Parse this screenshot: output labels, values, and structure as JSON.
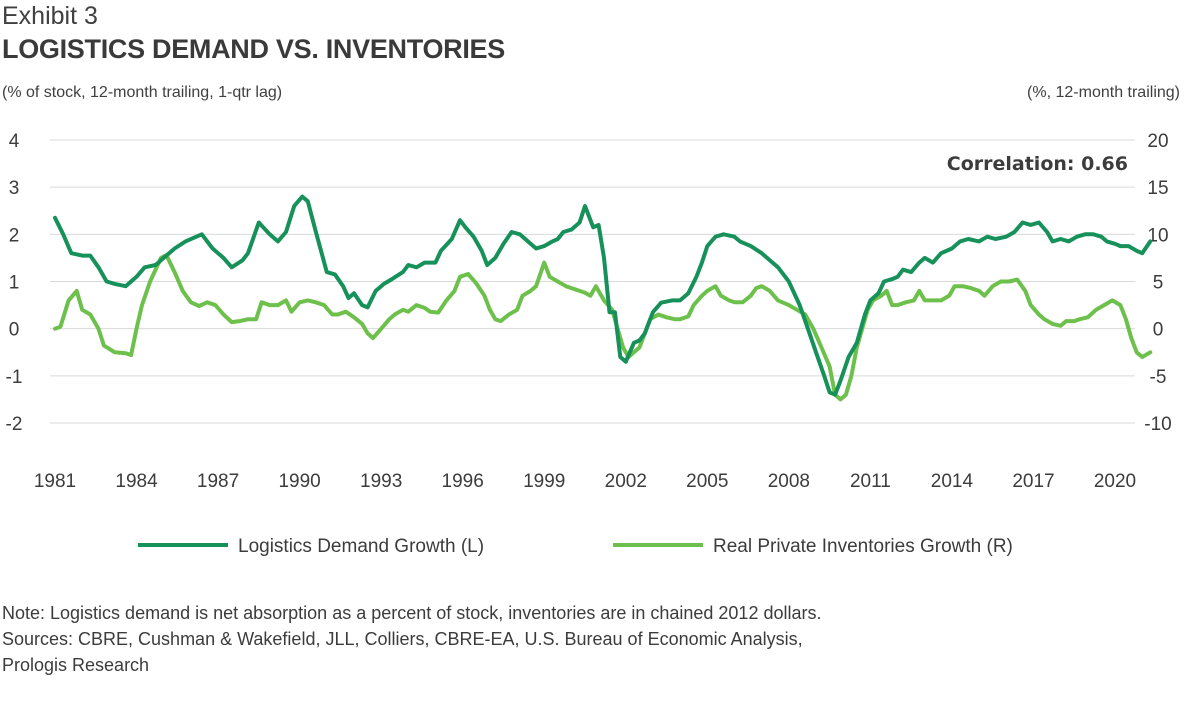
{
  "header": {
    "exhibit": "Exhibit 3",
    "title": "LOGISTICS DEMAND VS. INVENTORIES",
    "left_unit": "(% of stock, 12-month trailing, 1-qtr lag)",
    "right_unit": "(%, 12-month trailing)"
  },
  "chart_data": {
    "type": "line",
    "annotation": "Correlation: 0.66",
    "x_ticks": [
      "1981",
      "1984",
      "1987",
      "1990",
      "1993",
      "1996",
      "1999",
      "2002",
      "2005",
      "2008",
      "2011",
      "2014",
      "2017",
      "2020"
    ],
    "y_left": {
      "label": "(% of stock, 12-month trailing, 1-qtr lag)",
      "ticks": [
        "4",
        "3",
        "2",
        "1",
        "0",
        "-1",
        "-2"
      ],
      "ylim": [
        -2,
        4
      ]
    },
    "y_right": {
      "label": "(%, 12-month trailing)",
      "ticks": [
        "20",
        "15",
        "10",
        "5",
        "0",
        "-5",
        "-10"
      ],
      "ylim": [
        -10,
        20
      ]
    },
    "colors": {
      "demand": "#17915A",
      "inventories": "#6DC04B",
      "grid": "#d9d9d9"
    },
    "series": [
      {
        "name": "Logistics Demand Growth (L)",
        "axis": "left",
        "points": [
          [
            1981.0,
            2.35
          ],
          [
            1981.3,
            2.0
          ],
          [
            1981.6,
            1.6
          ],
          [
            1982.0,
            1.55
          ],
          [
            1982.3,
            1.55
          ],
          [
            1982.6,
            1.3
          ],
          [
            1982.9,
            1.0
          ],
          [
            1983.2,
            0.95
          ],
          [
            1983.6,
            0.9
          ],
          [
            1984.0,
            1.1
          ],
          [
            1984.3,
            1.3
          ],
          [
            1984.7,
            1.35
          ],
          [
            1985.0,
            1.5
          ],
          [
            1985.4,
            1.7
          ],
          [
            1985.8,
            1.85
          ],
          [
            1986.2,
            1.95
          ],
          [
            1986.4,
            2.0
          ],
          [
            1986.8,
            1.7
          ],
          [
            1987.2,
            1.5
          ],
          [
            1987.5,
            1.3
          ],
          [
            1987.9,
            1.45
          ],
          [
            1988.1,
            1.6
          ],
          [
            1988.5,
            2.25
          ],
          [
            1988.9,
            2.0
          ],
          [
            1989.2,
            1.85
          ],
          [
            1989.5,
            2.05
          ],
          [
            1989.8,
            2.6
          ],
          [
            1990.1,
            2.8
          ],
          [
            1990.3,
            2.7
          ],
          [
            1990.6,
            2.05
          ],
          [
            1991.0,
            1.2
          ],
          [
            1991.3,
            1.15
          ],
          [
            1991.6,
            0.9
          ],
          [
            1991.8,
            0.65
          ],
          [
            1992.0,
            0.75
          ],
          [
            1992.3,
            0.5
          ],
          [
            1992.5,
            0.45
          ],
          [
            1992.8,
            0.8
          ],
          [
            1993.1,
            0.95
          ],
          [
            1993.4,
            1.05
          ],
          [
            1993.8,
            1.2
          ],
          [
            1994.0,
            1.35
          ],
          [
            1994.3,
            1.3
          ],
          [
            1994.6,
            1.4
          ],
          [
            1995.0,
            1.4
          ],
          [
            1995.2,
            1.65
          ],
          [
            1995.6,
            1.9
          ],
          [
            1995.9,
            2.3
          ],
          [
            1996.1,
            2.15
          ],
          [
            1996.4,
            1.95
          ],
          [
            1996.7,
            1.65
          ],
          [
            1996.9,
            1.35
          ],
          [
            1997.2,
            1.5
          ],
          [
            1997.5,
            1.8
          ],
          [
            1997.8,
            2.05
          ],
          [
            1998.1,
            2.0
          ],
          [
            1998.4,
            1.85
          ],
          [
            1998.7,
            1.7
          ],
          [
            1999.0,
            1.75
          ],
          [
            1999.3,
            1.85
          ],
          [
            1999.5,
            1.9
          ],
          [
            1999.7,
            2.05
          ],
          [
            2000.0,
            2.1
          ],
          [
            2000.3,
            2.25
          ],
          [
            2000.5,
            2.6
          ],
          [
            2000.8,
            2.15
          ],
          [
            2001.0,
            2.2
          ],
          [
            2001.2,
            1.5
          ],
          [
            2001.4,
            0.35
          ],
          [
            2001.6,
            0.35
          ],
          [
            2001.8,
            -0.6
          ],
          [
            2002.0,
            -0.7
          ],
          [
            2002.3,
            -0.3
          ],
          [
            2002.5,
            -0.25
          ],
          [
            2002.7,
            -0.1
          ],
          [
            2003.0,
            0.35
          ],
          [
            2003.3,
            0.55
          ],
          [
            2003.7,
            0.6
          ],
          [
            2004.0,
            0.6
          ],
          [
            2004.3,
            0.75
          ],
          [
            2004.6,
            1.1
          ],
          [
            2004.8,
            1.4
          ],
          [
            2005.0,
            1.75
          ],
          [
            2005.3,
            1.95
          ],
          [
            2005.6,
            2.0
          ],
          [
            2006.0,
            1.95
          ],
          [
            2006.2,
            1.85
          ],
          [
            2006.6,
            1.75
          ],
          [
            2007.0,
            1.6
          ],
          [
            2007.3,
            1.45
          ],
          [
            2007.6,
            1.3
          ],
          [
            2008.0,
            1.0
          ],
          [
            2008.4,
            0.5
          ],
          [
            2008.7,
            0.0
          ],
          [
            2009.0,
            -0.5
          ],
          [
            2009.3,
            -1.0
          ],
          [
            2009.5,
            -1.35
          ],
          [
            2009.7,
            -1.4
          ],
          [
            2009.9,
            -1.1
          ],
          [
            2010.2,
            -0.6
          ],
          [
            2010.5,
            -0.3
          ],
          [
            2010.8,
            0.3
          ],
          [
            2011.0,
            0.6
          ],
          [
            2011.3,
            0.75
          ],
          [
            2011.5,
            1.0
          ],
          [
            2011.8,
            1.05
          ],
          [
            2012.0,
            1.1
          ],
          [
            2012.2,
            1.25
          ],
          [
            2012.5,
            1.2
          ],
          [
            2012.8,
            1.4
          ],
          [
            2013.0,
            1.5
          ],
          [
            2013.3,
            1.4
          ],
          [
            2013.6,
            1.6
          ],
          [
            2014.0,
            1.7
          ],
          [
            2014.3,
            1.85
          ],
          [
            2014.6,
            1.9
          ],
          [
            2015.0,
            1.85
          ],
          [
            2015.3,
            1.95
          ],
          [
            2015.6,
            1.9
          ],
          [
            2016.0,
            1.95
          ],
          [
            2016.3,
            2.05
          ],
          [
            2016.6,
            2.25
          ],
          [
            2016.9,
            2.2
          ],
          [
            2017.2,
            2.25
          ],
          [
            2017.5,
            2.05
          ],
          [
            2017.7,
            1.85
          ],
          [
            2018.0,
            1.9
          ],
          [
            2018.3,
            1.85
          ],
          [
            2018.6,
            1.95
          ],
          [
            2018.9,
            2.0
          ],
          [
            2019.2,
            2.0
          ],
          [
            2019.5,
            1.95
          ],
          [
            2019.7,
            1.85
          ],
          [
            2020.0,
            1.8
          ],
          [
            2020.2,
            1.75
          ],
          [
            2020.5,
            1.75
          ],
          [
            2020.8,
            1.65
          ],
          [
            2021.0,
            1.6
          ],
          [
            2021.3,
            1.85
          ]
        ]
      },
      {
        "name": "Real Private Inventories Growth (R)",
        "axis": "right",
        "points": [
          [
            1981.0,
            0.0
          ],
          [
            1981.2,
            0.2
          ],
          [
            1981.5,
            3.0
          ],
          [
            1981.8,
            4.0
          ],
          [
            1982.0,
            2.0
          ],
          [
            1982.3,
            1.5
          ],
          [
            1982.6,
            0.0
          ],
          [
            1982.8,
            -1.8
          ],
          [
            1983.2,
            -2.5
          ],
          [
            1983.6,
            -2.6
          ],
          [
            1983.8,
            -2.8
          ],
          [
            1984.0,
            0.0
          ],
          [
            1984.2,
            2.5
          ],
          [
            1984.5,
            5.0
          ],
          [
            1984.9,
            7.5
          ],
          [
            1985.1,
            7.8
          ],
          [
            1985.4,
            6.0
          ],
          [
            1985.7,
            4.0
          ],
          [
            1986.0,
            2.8
          ],
          [
            1986.3,
            2.4
          ],
          [
            1986.6,
            2.8
          ],
          [
            1986.9,
            2.5
          ],
          [
            1987.2,
            1.5
          ],
          [
            1987.5,
            0.7
          ],
          [
            1987.8,
            0.8
          ],
          [
            1988.1,
            1.0
          ],
          [
            1988.4,
            1.0
          ],
          [
            1988.6,
            2.8
          ],
          [
            1988.9,
            2.5
          ],
          [
            1989.2,
            2.5
          ],
          [
            1989.5,
            3.0
          ],
          [
            1989.7,
            1.8
          ],
          [
            1990.0,
            2.8
          ],
          [
            1990.3,
            3.0
          ],
          [
            1990.6,
            2.8
          ],
          [
            1990.9,
            2.5
          ],
          [
            1991.2,
            1.5
          ],
          [
            1991.4,
            1.5
          ],
          [
            1991.7,
            1.8
          ],
          [
            1992.0,
            1.2
          ],
          [
            1992.3,
            0.5
          ],
          [
            1992.5,
            -0.5
          ],
          [
            1992.7,
            -1.0
          ],
          [
            1993.0,
            0.0
          ],
          [
            1993.3,
            1.0
          ],
          [
            1993.5,
            1.5
          ],
          [
            1993.8,
            2.0
          ],
          [
            1994.0,
            1.8
          ],
          [
            1994.3,
            2.5
          ],
          [
            1994.6,
            2.2
          ],
          [
            1994.8,
            1.8
          ],
          [
            1995.1,
            1.7
          ],
          [
            1995.4,
            3.0
          ],
          [
            1995.7,
            4.0
          ],
          [
            1995.9,
            5.5
          ],
          [
            1996.2,
            5.8
          ],
          [
            1996.5,
            4.8
          ],
          [
            1996.8,
            3.5
          ],
          [
            1997.0,
            2.0
          ],
          [
            1997.2,
            1.0
          ],
          [
            1997.4,
            0.8
          ],
          [
            1997.7,
            1.5
          ],
          [
            1998.0,
            2.0
          ],
          [
            1998.2,
            3.5
          ],
          [
            1998.5,
            4.0
          ],
          [
            1998.7,
            4.5
          ],
          [
            1999.0,
            7.0
          ],
          [
            1999.2,
            5.5
          ],
          [
            1999.5,
            5.0
          ],
          [
            1999.8,
            4.5
          ],
          [
            2000.0,
            4.3
          ],
          [
            2000.3,
            4.0
          ],
          [
            2000.5,
            3.8
          ],
          [
            2000.7,
            3.5
          ],
          [
            2000.9,
            4.5
          ],
          [
            2001.2,
            3.0
          ],
          [
            2001.5,
            2.0
          ],
          [
            2001.7,
            0.0
          ],
          [
            2001.9,
            -2.0
          ],
          [
            2002.1,
            -3.0
          ],
          [
            2002.3,
            -2.5
          ],
          [
            2002.5,
            -2.0
          ],
          [
            2002.7,
            -0.5
          ],
          [
            2002.9,
            1.0
          ],
          [
            2003.2,
            1.5
          ],
          [
            2003.5,
            1.2
          ],
          [
            2003.8,
            1.0
          ],
          [
            2004.0,
            1.0
          ],
          [
            2004.3,
            1.3
          ],
          [
            2004.5,
            2.5
          ],
          [
            2004.8,
            3.5
          ],
          [
            2005.0,
            4.0
          ],
          [
            2005.3,
            4.5
          ],
          [
            2005.5,
            3.5
          ],
          [
            2005.8,
            3.0
          ],
          [
            2006.0,
            2.8
          ],
          [
            2006.3,
            2.8
          ],
          [
            2006.6,
            3.5
          ],
          [
            2006.8,
            4.3
          ],
          [
            2007.0,
            4.5
          ],
          [
            2007.3,
            4.0
          ],
          [
            2007.6,
            3.0
          ],
          [
            2008.0,
            2.5
          ],
          [
            2008.3,
            2.0
          ],
          [
            2008.6,
            1.5
          ],
          [
            2008.9,
            0.0
          ],
          [
            2009.2,
            -2.0
          ],
          [
            2009.5,
            -4.0
          ],
          [
            2009.7,
            -7.0
          ],
          [
            2009.9,
            -7.5
          ],
          [
            2010.1,
            -7.0
          ],
          [
            2010.3,
            -5.0
          ],
          [
            2010.5,
            -2.0
          ],
          [
            2010.7,
            0.0
          ],
          [
            2010.9,
            2.0
          ],
          [
            2011.1,
            3.0
          ],
          [
            2011.4,
            3.5
          ],
          [
            2011.6,
            4.0
          ],
          [
            2011.8,
            2.5
          ],
          [
            2012.0,
            2.5
          ],
          [
            2012.3,
            2.8
          ],
          [
            2012.6,
            3.0
          ],
          [
            2012.8,
            4.0
          ],
          [
            2013.0,
            3.0
          ],
          [
            2013.3,
            3.0
          ],
          [
            2013.6,
            3.0
          ],
          [
            2013.9,
            3.5
          ],
          [
            2014.1,
            4.5
          ],
          [
            2014.4,
            4.5
          ],
          [
            2014.7,
            4.3
          ],
          [
            2015.0,
            4.0
          ],
          [
            2015.2,
            3.5
          ],
          [
            2015.5,
            4.5
          ],
          [
            2015.8,
            5.0
          ],
          [
            2016.1,
            5.0
          ],
          [
            2016.4,
            5.2
          ],
          [
            2016.7,
            4.0
          ],
          [
            2016.9,
            2.5
          ],
          [
            2017.2,
            1.5
          ],
          [
            2017.4,
            1.0
          ],
          [
            2017.7,
            0.5
          ],
          [
            2018.0,
            0.3
          ],
          [
            2018.2,
            0.8
          ],
          [
            2018.5,
            0.8
          ],
          [
            2018.7,
            1.0
          ],
          [
            2019.0,
            1.2
          ],
          [
            2019.3,
            2.0
          ],
          [
            2019.6,
            2.5
          ],
          [
            2019.9,
            3.0
          ],
          [
            2020.2,
            2.5
          ],
          [
            2020.4,
            1.0
          ],
          [
            2020.6,
            -1.0
          ],
          [
            2020.8,
            -2.5
          ],
          [
            2021.0,
            -3.0
          ],
          [
            2021.3,
            -2.5
          ]
        ]
      }
    ]
  },
  "footer": {
    "note_line1": "Note: Logistics demand is net absorption as a percent of stock, inventories are in chained 2012 dollars.",
    "note_line2": "Sources: CBRE, Cushman & Wakefield, JLL, Colliers, CBRE-EA, U.S. Bureau of Economic Analysis,",
    "note_line3": "Prologis Research"
  }
}
